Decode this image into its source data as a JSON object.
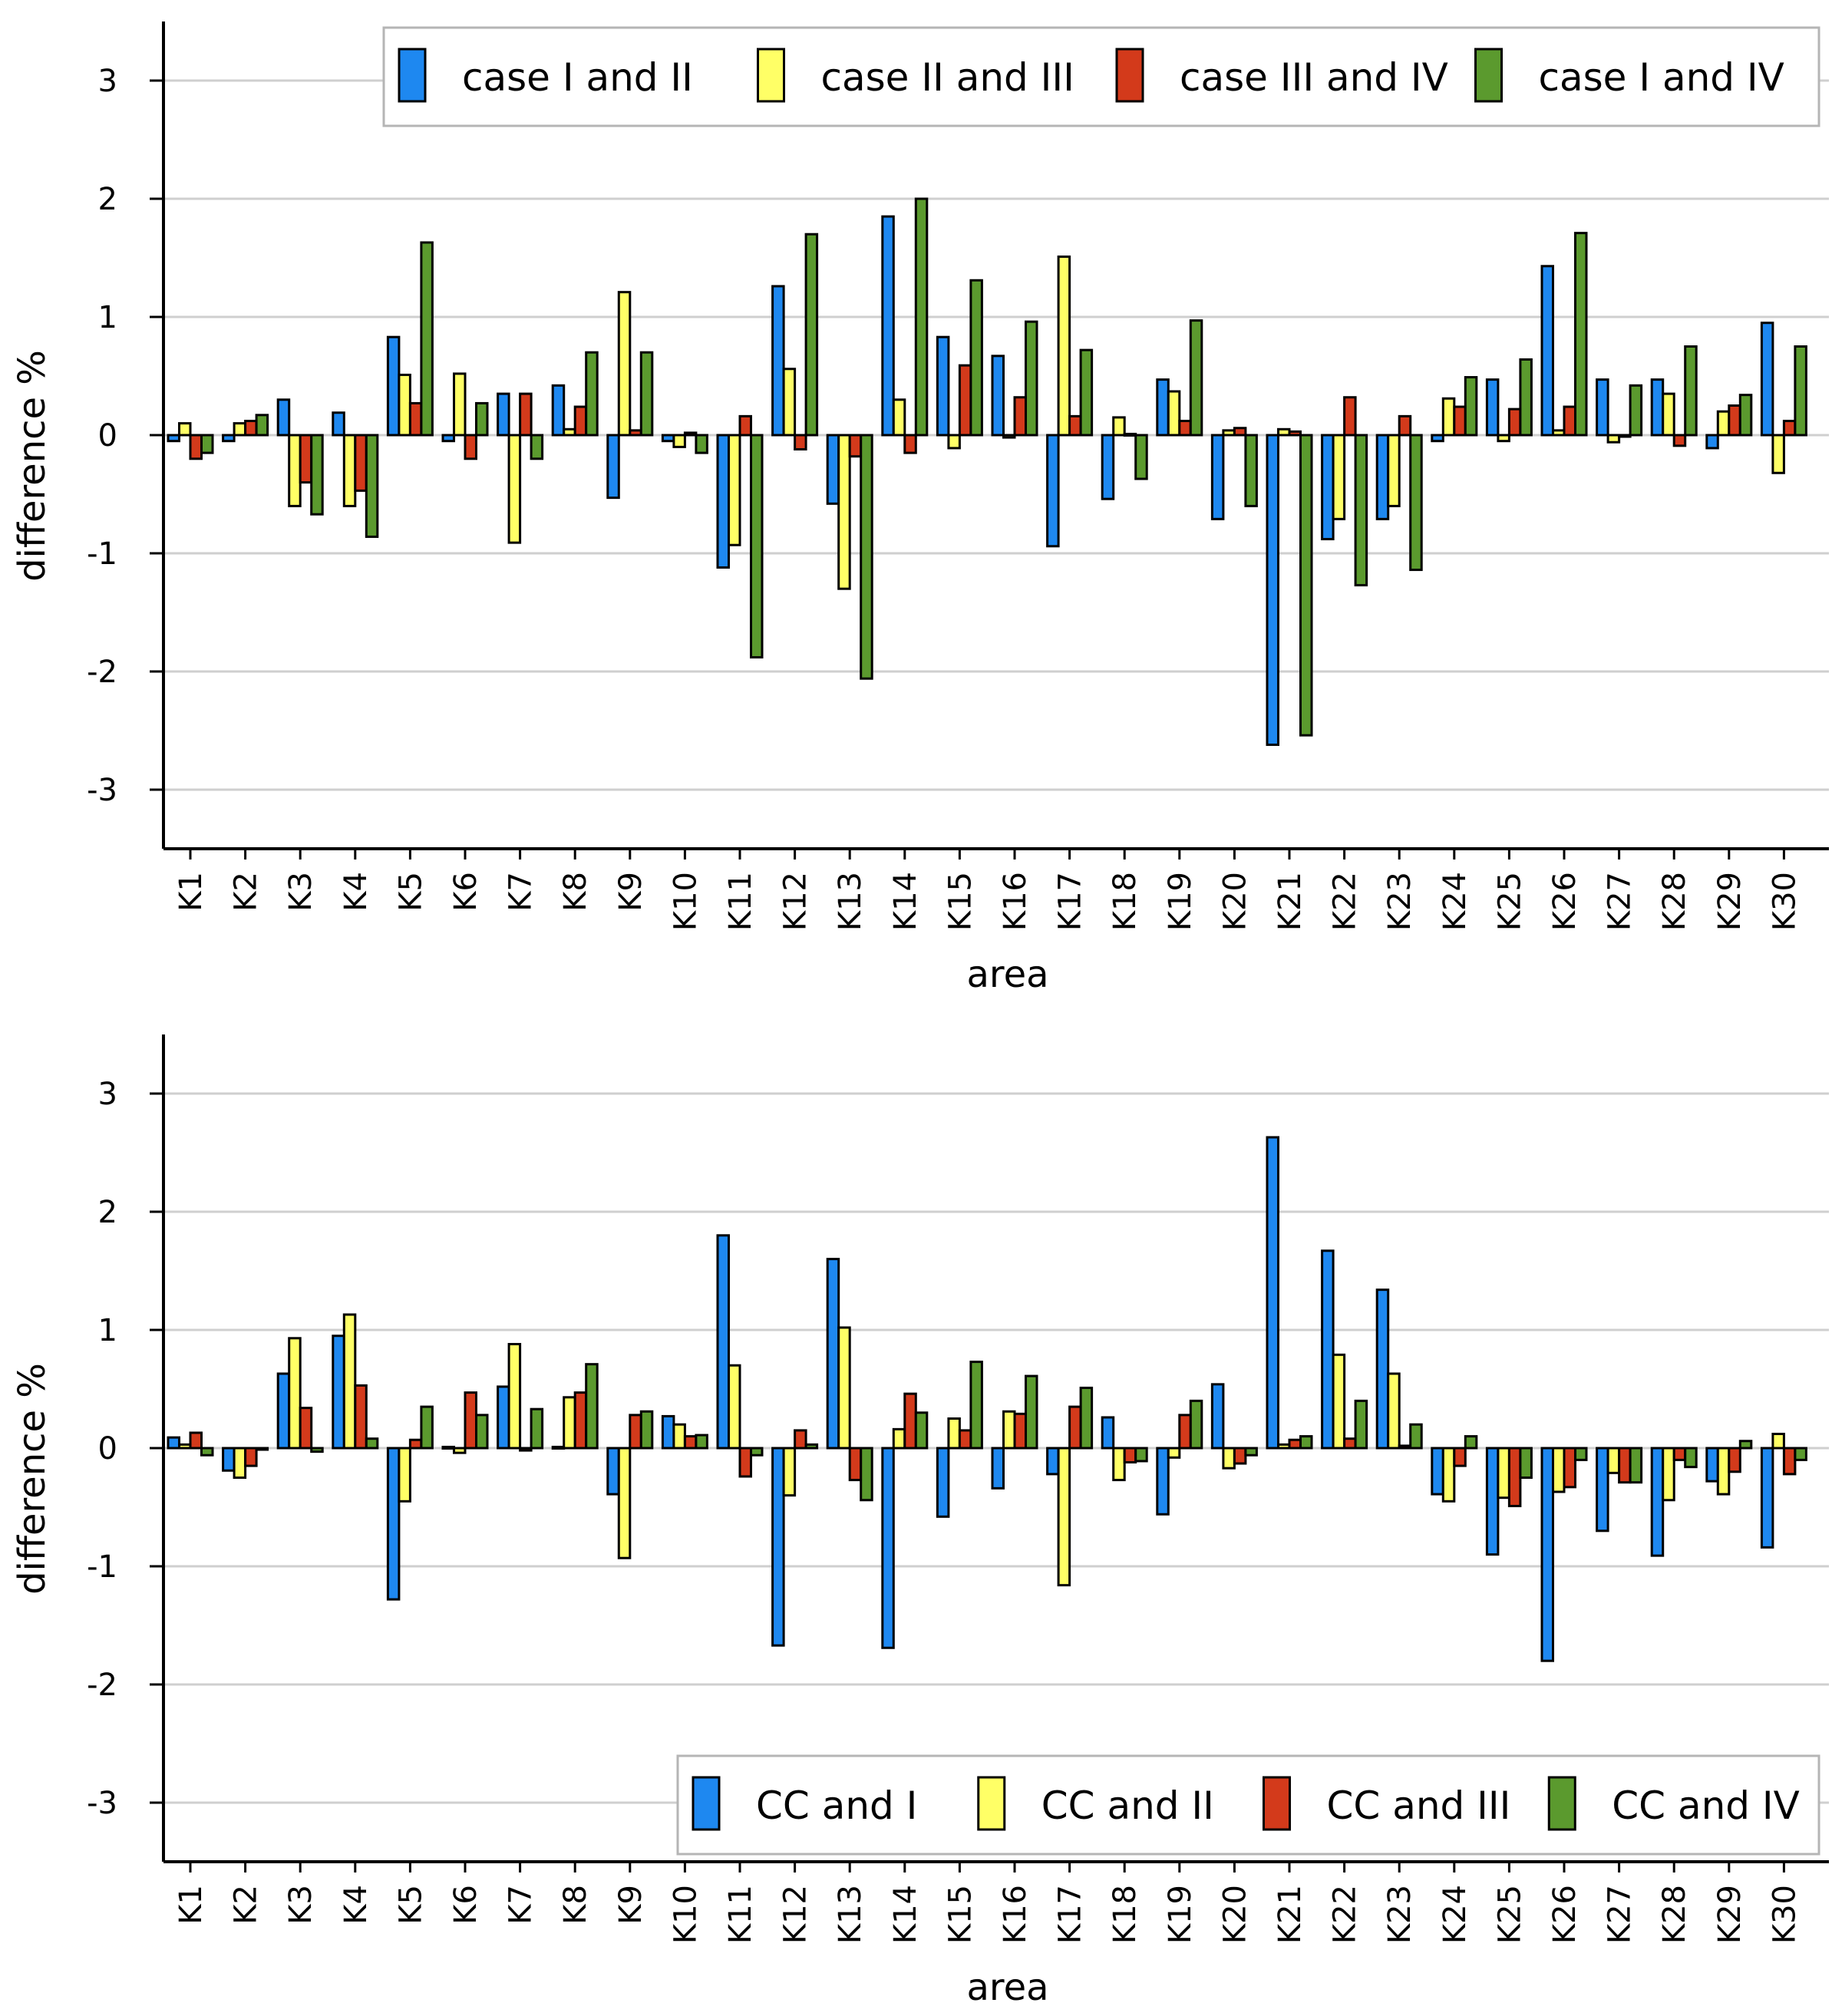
{
  "colors": {
    "blue": "#1E88F0",
    "yellow": "#FFFF66",
    "red": "#D33A1B",
    "green": "#5B9A2E",
    "grid": "#cfcfcf"
  },
  "chart_data": [
    {
      "type": "bar",
      "title": "",
      "xlabel": "area",
      "ylabel": "difference %",
      "ylim": [
        -3.5,
        3.5
      ],
      "yticks": [
        "-3",
        "-2",
        "-1",
        "0",
        "1",
        "2",
        "3"
      ],
      "grid": true,
      "legend_position": "top",
      "categories": [
        "K1",
        "K2",
        "K3",
        "K4",
        "K5",
        "K6",
        "K7",
        "K8",
        "K9",
        "K10",
        "K11",
        "K12",
        "K13",
        "K14",
        "K15",
        "K16",
        "K17",
        "K18",
        "K19",
        "K20",
        "K21",
        "K22",
        "K23",
        "K24",
        "K25",
        "K26",
        "K27",
        "K28",
        "K29",
        "K30"
      ],
      "series": [
        {
          "name": "case I and II",
          "color": "#1E88F0",
          "values": [
            -0.05,
            -0.05,
            0.3,
            0.19,
            0.83,
            -0.05,
            0.35,
            0.42,
            -0.53,
            -0.05,
            -1.12,
            1.26,
            -0.58,
            1.85,
            0.83,
            0.67,
            -0.94,
            -0.54,
            0.47,
            -0.71,
            -2.62,
            -0.88,
            -0.71,
            -0.05,
            0.47,
            1.43,
            0.47,
            0.47,
            -0.11,
            0.95
          ]
        },
        {
          "name": "case II and III",
          "color": "#FFFF66",
          "values": [
            0.1,
            0.1,
            -0.6,
            -0.6,
            0.51,
            0.52,
            -0.91,
            0.05,
            1.21,
            -0.1,
            -0.93,
            0.56,
            -1.3,
            0.3,
            -0.11,
            -0.02,
            1.51,
            0.15,
            0.37,
            0.04,
            0.05,
            -0.71,
            -0.6,
            0.31,
            -0.05,
            0.04,
            -0.06,
            0.35,
            0.2,
            -0.32
          ]
        },
        {
          "name": "case III and IV",
          "color": "#D33A1B",
          "values": [
            -0.2,
            0.12,
            -0.4,
            -0.47,
            0.27,
            -0.2,
            0.35,
            0.24,
            0.04,
            0.02,
            0.16,
            -0.12,
            -0.18,
            -0.15,
            0.59,
            0.32,
            0.16,
            0.01,
            0.12,
            0.06,
            0.03,
            0.32,
            0.16,
            0.24,
            0.22,
            0.24,
            0.0,
            -0.09,
            0.25,
            0.12
          ]
        },
        {
          "name": "case I and IV",
          "color": "#5B9A2E",
          "values": [
            -0.15,
            0.17,
            -0.67,
            -0.86,
            1.63,
            0.27,
            -0.2,
            0.7,
            0.7,
            -0.15,
            -1.88,
            1.7,
            -2.06,
            2.0,
            1.31,
            0.96,
            0.72,
            -0.37,
            0.97,
            -0.6,
            -2.54,
            -1.27,
            -1.14,
            0.49,
            0.64,
            1.71,
            0.42,
            0.75,
            0.34,
            0.75
          ]
        }
      ]
    },
    {
      "type": "bar",
      "title": "",
      "xlabel": "area",
      "ylabel": "difference %",
      "ylim": [
        -3.5,
        3.5
      ],
      "yticks": [
        "-3",
        "-2",
        "-1",
        "0",
        "1",
        "2",
        "3"
      ],
      "grid": true,
      "legend_position": "bottom",
      "categories": [
        "K1",
        "K2",
        "K3",
        "K4",
        "K5",
        "K6",
        "K7",
        "K8",
        "K9",
        "K10",
        "K11",
        "K12",
        "K13",
        "K14",
        "K15",
        "K16",
        "K17",
        "K18",
        "K19",
        "K20",
        "K21",
        "K22",
        "K23",
        "K24",
        "K25",
        "K26",
        "K27",
        "K28",
        "K29",
        "K30"
      ],
      "series": [
        {
          "name": "CC and I",
          "color": "#1E88F0",
          "values": [
            0.09,
            -0.19,
            0.63,
            0.95,
            -1.28,
            0.01,
            0.52,
            0.01,
            -0.39,
            0.27,
            1.8,
            -1.67,
            1.6,
            -1.69,
            -0.58,
            -0.34,
            -0.22,
            0.26,
            -0.56,
            0.54,
            2.63,
            1.67,
            1.34,
            -0.39,
            -0.9,
            -1.8,
            -0.7,
            -0.91,
            -0.28,
            -0.84
          ]
        },
        {
          "name": "CC and II",
          "color": "#FFFF66",
          "values": [
            0.03,
            -0.25,
            0.93,
            1.13,
            -0.45,
            -0.04,
            0.88,
            0.43,
            -0.93,
            0.2,
            0.7,
            -0.4,
            1.02,
            0.16,
            0.25,
            0.31,
            -1.16,
            -0.27,
            -0.08,
            -0.17,
            0.03,
            0.79,
            0.63,
            -0.45,
            -0.42,
            -0.37,
            -0.21,
            -0.44,
            -0.39,
            0.12
          ]
        },
        {
          "name": "CC and III",
          "color": "#D33A1B",
          "values": [
            0.13,
            -0.15,
            0.34,
            0.53,
            0.07,
            0.47,
            -0.02,
            0.47,
            0.28,
            0.1,
            -0.24,
            0.15,
            -0.27,
            0.46,
            0.15,
            0.29,
            0.35,
            -0.12,
            0.28,
            -0.13,
            0.07,
            0.08,
            0.02,
            -0.15,
            -0.49,
            -0.33,
            -0.29,
            -0.1,
            -0.2,
            -0.22
          ]
        },
        {
          "name": "CC and IV",
          "color": "#5B9A2E",
          "values": [
            -0.06,
            -0.01,
            -0.03,
            0.08,
            0.35,
            0.28,
            0.33,
            0.71,
            0.31,
            0.11,
            -0.06,
            0.03,
            -0.44,
            0.3,
            0.73,
            0.61,
            0.51,
            -0.11,
            0.4,
            -0.06,
            0.1,
            0.4,
            0.2,
            0.1,
            -0.25,
            -0.1,
            -0.29,
            -0.16,
            0.06,
            -0.1
          ]
        }
      ]
    }
  ]
}
